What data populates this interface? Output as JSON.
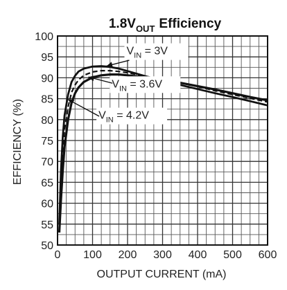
{
  "chart_data": {
    "type": "line",
    "title": "1.8V",
    "title_subscript": "OUT",
    "title_suffix": "Efficiency",
    "xlabel": "OUTPUT CURRENT (mA)",
    "ylabel": "EFFICIENCY (%)",
    "xlim": [
      0,
      600
    ],
    "ylim": [
      50,
      100
    ],
    "xticks": [
      0,
      100,
      200,
      300,
      400,
      500,
      600
    ],
    "yticks": [
      50,
      55,
      60,
      65,
      70,
      75,
      80,
      85,
      90,
      95,
      100
    ],
    "grid": true,
    "x_minor_step": 25,
    "y_minor_step": 2.5,
    "series": [
      {
        "name": "V_IN = 3V",
        "label_main": "V",
        "label_sub": "IN",
        "label_rest": " = 3V",
        "style": "solid",
        "x": [
          5,
          10,
          15,
          20,
          30,
          40,
          50,
          60,
          75,
          100,
          125,
          150,
          175,
          200,
          250,
          300,
          350,
          400,
          450,
          500,
          550,
          600
        ],
        "y": [
          55,
          68,
          76,
          81,
          86,
          89,
          90.5,
          91.5,
          92.2,
          92.7,
          92.8,
          92.6,
          92.2,
          91.6,
          90.4,
          89.3,
          88.3,
          87.3,
          86.3,
          85.4,
          84.4,
          83.4
        ]
      },
      {
        "name": "V_IN = 3.6V",
        "label_main": "V",
        "label_sub": "IN",
        "label_rest": " = 3.6V",
        "style": "dashed",
        "x": [
          5,
          10,
          15,
          20,
          30,
          40,
          50,
          60,
          75,
          100,
          125,
          150,
          175,
          200,
          250,
          300,
          350,
          400,
          450,
          500,
          550,
          600
        ],
        "y": [
          54,
          64,
          72,
          77.5,
          83,
          86.5,
          88.3,
          89.5,
          90.6,
          91.4,
          91.7,
          91.7,
          91.5,
          91.2,
          90.4,
          89.6,
          88.8,
          87.9,
          86.9,
          86,
          85.1,
          84.2
        ]
      },
      {
        "name": "V_IN = 4.2V",
        "label_main": "V",
        "label_sub": "IN",
        "label_rest": " = 4.2V",
        "style": "solid",
        "x": [
          5,
          10,
          15,
          20,
          30,
          40,
          50,
          60,
          75,
          100,
          125,
          150,
          175,
          200,
          250,
          300,
          350,
          400,
          450,
          500,
          550,
          600
        ],
        "y": [
          53,
          61,
          68,
          73.5,
          80,
          84,
          86.3,
          87.7,
          89,
          90.1,
          90.6,
          90.8,
          90.8,
          90.6,
          90.1,
          89.5,
          88.8,
          88,
          87.2,
          86.3,
          85.4,
          84.6
        ]
      }
    ]
  }
}
